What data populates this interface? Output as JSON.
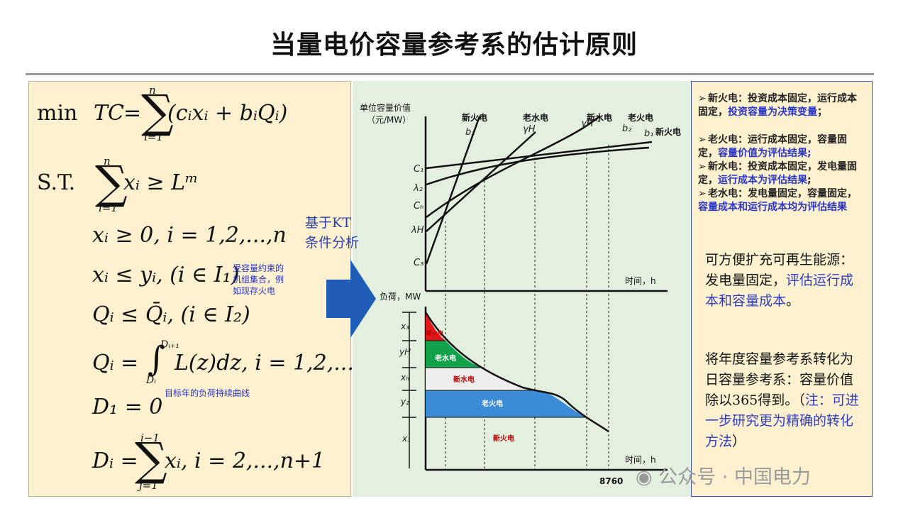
{
  "title": "当量电价容量参考系的估计原则",
  "formulas": {
    "obj_min": "min",
    "obj_tc": "TC",
    "obj_sum_top": "n",
    "obj_sum_bot": "i=1",
    "obj_body": "(cᵢxᵢ + bᵢQᵢ)",
    "st": "S.T.",
    "c1_top": "n",
    "c1_bot": "i=1",
    "c1_body": "xᵢ ≥ Lᵐ",
    "c2": "xᵢ ≥ 0, i = 1,2,...,n",
    "c3": "xᵢ ≤ yᵢ, (i ∈ I₁)",
    "c4": "Qᵢ ≤ Q̄ᵢ, (i ∈ I₂)",
    "c5_lhs": "Qᵢ =",
    "c5_upper": "Dᵢ₊₁",
    "c5_lower": "Dᵢ",
    "c5_body": "L(z)dz, i = 1,2,...,n",
    "c6": "D₁ = 0",
    "c7_lhs": "Dᵢ =",
    "c7_top": "i−1",
    "c7_bot": "j=1",
    "c7_body": "xᵢ, i = 2,...,n+1"
  },
  "notes": {
    "constraint_note": [
      "受容量约束的",
      "机组集合，例",
      "如现存火电"
    ],
    "curve_note": "目标年的负荷持续曲线"
  },
  "kt_label": [
    "基于KT",
    "条件分析"
  ],
  "top_chart": {
    "ylabel": [
      "单位容量价值",
      "（元/MW）"
    ],
    "xlabel": "时间，h",
    "line_labels": [
      "新火电",
      "老水电",
      "新水电",
      "老火电"
    ],
    "right_label": "新火电",
    "sym_b2": "b₂",
    "sym_gH": "γH",
    "sym_gh": "γH",
    "sym_b2b": "b₂",
    "sym_b1": "b₁",
    "ticks": [
      "C₁",
      "λ₂",
      "Cₕ",
      "λH",
      "C₃"
    ]
  },
  "bottom_chart": {
    "ylabel": "负荷，MW",
    "xlabel": "时间，h",
    "x_end": "8760",
    "ticks": [
      "x₃",
      "yH",
      "xₕ",
      "y₂",
      "x₁"
    ],
    "band_labels": [
      "新火电",
      "老水电",
      "新水电",
      "老火电",
      "新火电"
    ],
    "colors": {
      "new_thermal_top": "#e01818",
      "old_hydro": "#12a24c",
      "new_hydro": "#eeeeee",
      "old_thermal": "#3c8bd6"
    }
  },
  "bullets": [
    {
      "lead": "新火电：投资成本固定，运行成本固定，",
      "blue": "投资容量为决策变量",
      "tail": "；"
    },
    {
      "lead": "老火电：运行成本固定，容量固定，",
      "blue": "容量价值为评估结果;",
      "tail": ""
    },
    {
      "lead": "新水电：投资成本固定，发电量固定，",
      "blue": "运行成本为评估结果",
      "tail": ";"
    },
    {
      "lead": "老水电：发电量固定，容量固定，",
      "blue": "容量成本和运行成本均为评估结果",
      "tail": ""
    }
  ],
  "para1": {
    "black": "可方便扩充可再生能源：发电量固定，",
    "blue": "评估运行成本和容量成本",
    "tail": "。"
  },
  "para2": {
    "black": "将年度容量参考系转化为日容量参考系：容量价值除以365得到。（",
    "blue": "注：可进一步研究更为精确的转化方法",
    "tail": "）"
  },
  "watermark": "公众号 · 中国电力"
}
